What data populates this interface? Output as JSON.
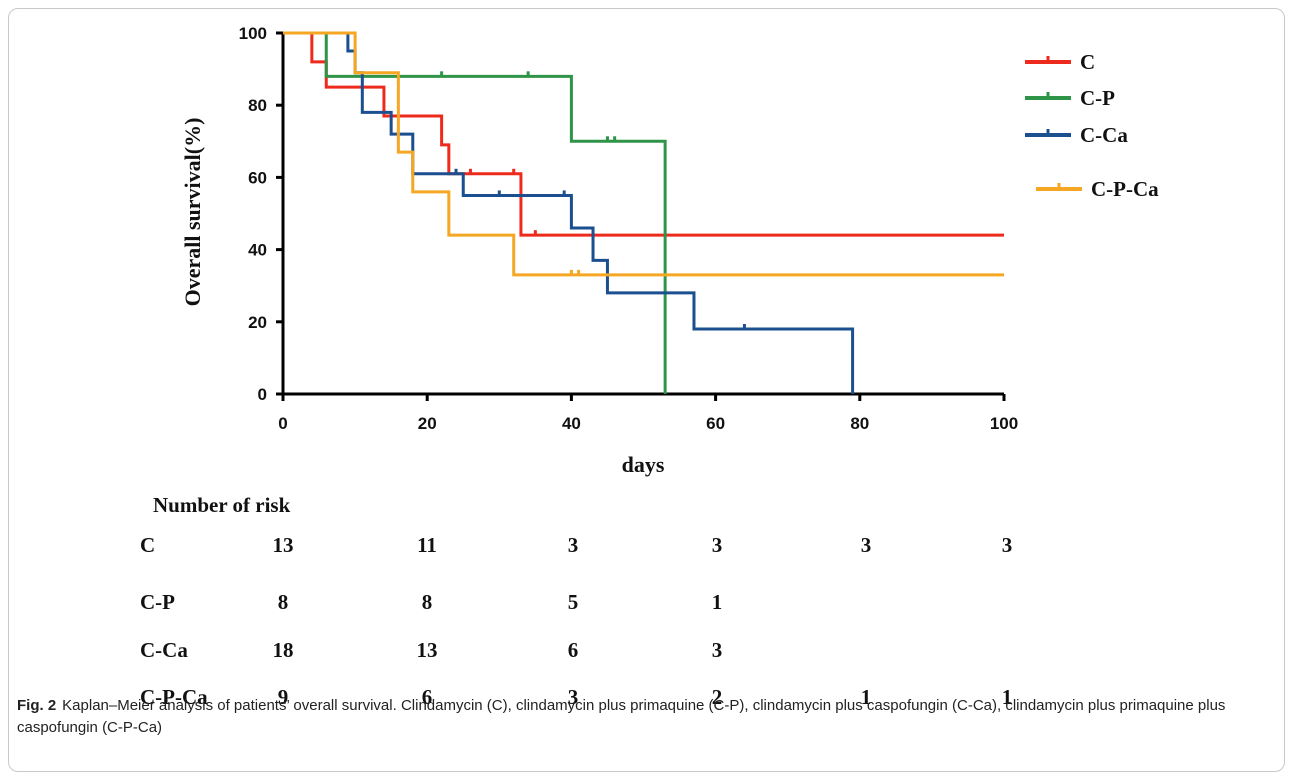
{
  "chart_data": {
    "type": "line",
    "ylabel": "Overall survival(%)",
    "xlabel": "days",
    "xlim": [
      0,
      100
    ],
    "ylim": [
      0,
      100
    ],
    "xticks": [
      0,
      20,
      40,
      60,
      80,
      100
    ],
    "yticks": [
      0,
      20,
      40,
      60,
      80,
      100
    ],
    "legend_position": "top-right",
    "series": [
      {
        "name": "C",
        "color": "#ee2a1c",
        "steps": [
          [
            0,
            100
          ],
          [
            4,
            92
          ],
          [
            6,
            85
          ],
          [
            14,
            77
          ],
          [
            22,
            69
          ],
          [
            23,
            61
          ],
          [
            33,
            44
          ],
          [
            100,
            44
          ]
        ],
        "censors": [
          [
            26,
            61
          ],
          [
            32,
            61
          ],
          [
            35,
            44
          ]
        ]
      },
      {
        "name": "C-P",
        "color": "#2e9448",
        "steps": [
          [
            0,
            100
          ],
          [
            6,
            88
          ],
          [
            40,
            70
          ],
          [
            53,
            0
          ]
        ],
        "censors": [
          [
            22,
            88
          ],
          [
            34,
            88
          ],
          [
            45,
            70
          ],
          [
            46,
            70
          ]
        ]
      },
      {
        "name": "C-Ca",
        "color": "#1b4f8f",
        "steps": [
          [
            0,
            100
          ],
          [
            9,
            95
          ],
          [
            10,
            89
          ],
          [
            11,
            78
          ],
          [
            15,
            72
          ],
          [
            18,
            61
          ],
          [
            25,
            55
          ],
          [
            40,
            46
          ],
          [
            43,
            37
          ],
          [
            45,
            28
          ],
          [
            57,
            18
          ],
          [
            79,
            0
          ]
        ],
        "censors": [
          [
            24,
            61
          ],
          [
            30,
            55
          ],
          [
            39,
            55
          ],
          [
            64,
            18
          ]
        ]
      },
      {
        "name": "C-P-Ca",
        "color": "#f5a623",
        "steps": [
          [
            0,
            100
          ],
          [
            10,
            89
          ],
          [
            16,
            67
          ],
          [
            18,
            56
          ],
          [
            23,
            44
          ],
          [
            32,
            33
          ],
          [
            100,
            33
          ]
        ],
        "censors": [
          [
            40,
            33
          ],
          [
            41,
            33
          ]
        ]
      }
    ]
  },
  "risk_table": {
    "title": "Number of risk",
    "rows": [
      {
        "label": "C",
        "values": [
          "13",
          "11",
          "3",
          "3",
          "3",
          "3"
        ]
      },
      {
        "label": "C-P",
        "values": [
          "8",
          "8",
          "5",
          "1",
          "",
          ""
        ]
      },
      {
        "label": "C-Ca",
        "values": [
          "18",
          "13",
          "6",
          "3",
          "",
          ""
        ]
      },
      {
        "label": "C-P-Ca",
        "values": [
          "9",
          "6",
          "3",
          "2",
          "1",
          "1"
        ]
      }
    ]
  },
  "caption": {
    "label": "Fig. 2",
    "text": "Kaplan–Meier analysis of patients’ overall survival. Clindamycin (C), clindamycin plus primaquine (C-P), clindamycin plus caspofungin (C-Ca), clindamycin plus primaquine plus caspofungin (C-P-Ca)"
  }
}
